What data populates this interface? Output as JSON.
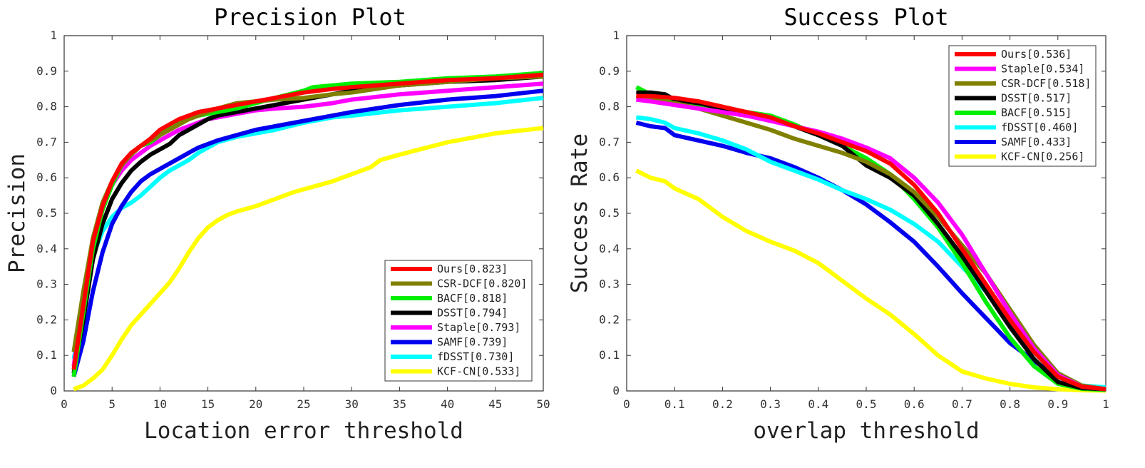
{
  "chart_data": [
    {
      "type": "line",
      "title": "Precision Plot",
      "xlabel": "Location error threshold",
      "ylabel": "Precision",
      "xlim": [
        0,
        50
      ],
      "ylim": [
        0,
        1
      ],
      "xticks": [
        "0",
        "5",
        "10",
        "15",
        "20",
        "25",
        "30",
        "35",
        "40",
        "45",
        "50"
      ],
      "yticks": [
        "0",
        "0.1",
        "0.2",
        "0.3",
        "0.4",
        "0.5",
        "0.6",
        "0.7",
        "0.8",
        "0.9",
        "1"
      ],
      "legend_position": "bottom-right",
      "grid": false,
      "series": [
        {
          "name": "Ours[0.823]",
          "color": "#ff0000",
          "x": [
            1,
            2,
            3,
            4,
            5,
            6,
            7,
            8,
            9,
            10,
            11,
            12,
            13,
            14,
            15,
            16,
            18,
            20,
            22,
            25,
            28,
            30,
            35,
            40,
            45,
            50
          ],
          "y": [
            0.06,
            0.24,
            0.42,
            0.52,
            0.59,
            0.64,
            0.67,
            0.69,
            0.71,
            0.735,
            0.75,
            0.765,
            0.775,
            0.785,
            0.79,
            0.795,
            0.805,
            0.815,
            0.825,
            0.84,
            0.85,
            0.855,
            0.865,
            0.875,
            0.88,
            0.89
          ]
        },
        {
          "name": "CSR-DCF[0.820]",
          "color": "#808000",
          "x": [
            1,
            2,
            3,
            4,
            5,
            6,
            7,
            8,
            9,
            10,
            11,
            12,
            13,
            14,
            15,
            16,
            18,
            20,
            22,
            25,
            28,
            30,
            35,
            40,
            45,
            50
          ],
          "y": [
            0.11,
            0.28,
            0.43,
            0.53,
            0.59,
            0.635,
            0.665,
            0.69,
            0.705,
            0.72,
            0.735,
            0.75,
            0.765,
            0.775,
            0.785,
            0.795,
            0.81,
            0.815,
            0.82,
            0.825,
            0.835,
            0.84,
            0.86,
            0.87,
            0.88,
            0.885
          ]
        },
        {
          "name": "BACF[0.818]",
          "color": "#00ee00",
          "x": [
            1,
            2,
            3,
            4,
            5,
            6,
            7,
            8,
            9,
            10,
            11,
            12,
            13,
            14,
            15,
            16,
            18,
            20,
            22,
            25,
            26,
            28,
            30,
            35,
            40,
            45,
            50
          ],
          "y": [
            0.04,
            0.22,
            0.4,
            0.51,
            0.58,
            0.635,
            0.67,
            0.69,
            0.7,
            0.72,
            0.74,
            0.755,
            0.765,
            0.775,
            0.78,
            0.785,
            0.795,
            0.81,
            0.825,
            0.845,
            0.855,
            0.86,
            0.865,
            0.87,
            0.88,
            0.885,
            0.895
          ]
        },
        {
          "name": "DSST[0.794]",
          "color": "#000000",
          "x": [
            1,
            2,
            3,
            4,
            5,
            6,
            7,
            8,
            9,
            10,
            11,
            12,
            13,
            14,
            15,
            16,
            18,
            20,
            22,
            25,
            28,
            30,
            35,
            40,
            45,
            50
          ],
          "y": [
            0.05,
            0.2,
            0.37,
            0.47,
            0.54,
            0.585,
            0.62,
            0.645,
            0.665,
            0.68,
            0.695,
            0.72,
            0.735,
            0.75,
            0.765,
            0.775,
            0.785,
            0.795,
            0.805,
            0.82,
            0.835,
            0.845,
            0.86,
            0.87,
            0.875,
            0.885
          ]
        },
        {
          "name": "Staple[0.793]",
          "color": "#ff00ff",
          "x": [
            1,
            2,
            3,
            4,
            5,
            6,
            7,
            8,
            9,
            10,
            11,
            12,
            13,
            14,
            15,
            16,
            18,
            20,
            22,
            25,
            28,
            30,
            35,
            40,
            45,
            50
          ],
          "y": [
            0.07,
            0.25,
            0.41,
            0.52,
            0.58,
            0.62,
            0.65,
            0.67,
            0.69,
            0.705,
            0.72,
            0.735,
            0.745,
            0.755,
            0.765,
            0.77,
            0.78,
            0.79,
            0.795,
            0.8,
            0.81,
            0.82,
            0.835,
            0.845,
            0.855,
            0.865
          ]
        },
        {
          "name": "SAMF[0.739]",
          "color": "#0000ee",
          "x": [
            1,
            2,
            3,
            4,
            5,
            6,
            7,
            8,
            9,
            10,
            11,
            12,
            13,
            14,
            15,
            16,
            18,
            20,
            22,
            25,
            28,
            30,
            35,
            40,
            45,
            50
          ],
          "y": [
            0.04,
            0.14,
            0.28,
            0.39,
            0.47,
            0.52,
            0.56,
            0.59,
            0.61,
            0.625,
            0.64,
            0.655,
            0.67,
            0.685,
            0.695,
            0.705,
            0.72,
            0.735,
            0.745,
            0.76,
            0.775,
            0.785,
            0.805,
            0.82,
            0.83,
            0.845
          ]
        },
        {
          "name": "fDSST[0.730]",
          "color": "#00ffff",
          "x": [
            1,
            2,
            3,
            4,
            5,
            6,
            7,
            8,
            9,
            10,
            11,
            12,
            13,
            14,
            15,
            16,
            18,
            20,
            22,
            25,
            28,
            30,
            35,
            40,
            45,
            50
          ],
          "y": [
            0.09,
            0.23,
            0.38,
            0.45,
            0.49,
            0.515,
            0.53,
            0.55,
            0.575,
            0.6,
            0.62,
            0.635,
            0.65,
            0.67,
            0.685,
            0.7,
            0.715,
            0.725,
            0.735,
            0.755,
            0.77,
            0.775,
            0.79,
            0.8,
            0.81,
            0.825
          ]
        },
        {
          "name": "KCF-CN[0.533]",
          "color": "#ffff00",
          "x": [
            1,
            2,
            3,
            4,
            5,
            6,
            7,
            8,
            9,
            10,
            11,
            12,
            13,
            14,
            15,
            16,
            17,
            18,
            20,
            22,
            24,
            26,
            28,
            30,
            32,
            33,
            35,
            40,
            45,
            50
          ],
          "y": [
            0.005,
            0.015,
            0.035,
            0.06,
            0.1,
            0.145,
            0.185,
            0.215,
            0.245,
            0.275,
            0.305,
            0.345,
            0.39,
            0.43,
            0.46,
            0.48,
            0.495,
            0.505,
            0.52,
            0.54,
            0.56,
            0.575,
            0.59,
            0.61,
            0.63,
            0.65,
            0.665,
            0.7,
            0.725,
            0.74
          ]
        }
      ]
    },
    {
      "type": "line",
      "title": "Success Plot",
      "xlabel": "overlap threshold",
      "ylabel": "Success Rate",
      "xlim": [
        0,
        1
      ],
      "ylim": [
        0,
        1
      ],
      "xticks": [
        "0",
        "0.1",
        "0.2",
        "0.3",
        "0.4",
        "0.5",
        "0.6",
        "0.7",
        "0.8",
        "0.9",
        "1"
      ],
      "yticks": [
        "0",
        "0.1",
        "0.2",
        "0.3",
        "0.4",
        "0.5",
        "0.6",
        "0.7",
        "0.8",
        "0.9",
        "1"
      ],
      "legend_position": "top-right",
      "grid": false,
      "series": [
        {
          "name": "Ours[0.536]",
          "color": "#ff0000",
          "x": [
            0.02,
            0.05,
            0.1,
            0.15,
            0.2,
            0.25,
            0.3,
            0.35,
            0.4,
            0.45,
            0.5,
            0.55,
            0.6,
            0.65,
            0.7,
            0.75,
            0.8,
            0.85,
            0.9,
            0.95,
            1.0
          ],
          "y": [
            0.83,
            0.83,
            0.825,
            0.815,
            0.8,
            0.785,
            0.77,
            0.745,
            0.725,
            0.7,
            0.675,
            0.64,
            0.58,
            0.5,
            0.4,
            0.3,
            0.2,
            0.11,
            0.04,
            0.012,
            0.005
          ]
        },
        {
          "name": "Staple[0.534]",
          "color": "#ff00ff",
          "x": [
            0.02,
            0.05,
            0.1,
            0.15,
            0.2,
            0.25,
            0.3,
            0.35,
            0.4,
            0.45,
            0.5,
            0.55,
            0.6,
            0.65,
            0.7,
            0.75,
            0.8,
            0.85,
            0.9,
            0.95,
            1.0
          ],
          "y": [
            0.82,
            0.815,
            0.805,
            0.795,
            0.785,
            0.775,
            0.76,
            0.745,
            0.73,
            0.71,
            0.685,
            0.655,
            0.6,
            0.53,
            0.44,
            0.33,
            0.22,
            0.12,
            0.045,
            0.012,
            0.005
          ]
        },
        {
          "name": "CSR-DCF[0.518]",
          "color": "#808000",
          "x": [
            0.02,
            0.05,
            0.1,
            0.15,
            0.2,
            0.25,
            0.3,
            0.35,
            0.4,
            0.45,
            0.5,
            0.55,
            0.6,
            0.65,
            0.7,
            0.75,
            0.8,
            0.85,
            0.9,
            0.95,
            1.0
          ],
          "y": [
            0.83,
            0.82,
            0.81,
            0.795,
            0.775,
            0.755,
            0.735,
            0.71,
            0.69,
            0.67,
            0.645,
            0.61,
            0.56,
            0.49,
            0.41,
            0.33,
            0.23,
            0.13,
            0.05,
            0.015,
            0.005
          ]
        },
        {
          "name": "DSST[0.517]",
          "color": "#000000",
          "x": [
            0.02,
            0.05,
            0.08,
            0.1,
            0.15,
            0.2,
            0.25,
            0.3,
            0.35,
            0.4,
            0.45,
            0.5,
            0.55,
            0.6,
            0.65,
            0.7,
            0.75,
            0.8,
            0.85,
            0.9,
            0.95,
            1.0
          ],
          "y": [
            0.84,
            0.84,
            0.835,
            0.82,
            0.81,
            0.795,
            0.78,
            0.765,
            0.745,
            0.72,
            0.69,
            0.635,
            0.6,
            0.55,
            0.47,
            0.38,
            0.28,
            0.18,
            0.09,
            0.025,
            0.008,
            0.005
          ]
        },
        {
          "name": "BACF[0.515]",
          "color": "#00ee00",
          "x": [
            0.02,
            0.05,
            0.1,
            0.15,
            0.2,
            0.25,
            0.3,
            0.35,
            0.4,
            0.45,
            0.5,
            0.55,
            0.6,
            0.65,
            0.7,
            0.75,
            0.8,
            0.85,
            0.9,
            0.95,
            1.0
          ],
          "y": [
            0.855,
            0.835,
            0.815,
            0.805,
            0.795,
            0.785,
            0.775,
            0.75,
            0.72,
            0.69,
            0.655,
            0.61,
            0.54,
            0.46,
            0.36,
            0.25,
            0.15,
            0.07,
            0.02,
            0.006,
            0.003
          ]
        },
        {
          "name": "fDSST[0.460]",
          "color": "#00ffff",
          "x": [
            0.02,
            0.05,
            0.08,
            0.1,
            0.15,
            0.2,
            0.25,
            0.3,
            0.35,
            0.4,
            0.45,
            0.5,
            0.55,
            0.6,
            0.65,
            0.7,
            0.75,
            0.8,
            0.85,
            0.9,
            0.95,
            1.0
          ],
          "y": [
            0.77,
            0.765,
            0.755,
            0.74,
            0.725,
            0.705,
            0.68,
            0.645,
            0.62,
            0.595,
            0.565,
            0.54,
            0.51,
            0.47,
            0.42,
            0.35,
            0.28,
            0.2,
            0.11,
            0.04,
            0.015,
            0.01
          ]
        },
        {
          "name": "SAMF[0.433]",
          "color": "#0000ee",
          "x": [
            0.02,
            0.05,
            0.08,
            0.1,
            0.15,
            0.2,
            0.25,
            0.3,
            0.35,
            0.4,
            0.45,
            0.5,
            0.55,
            0.6,
            0.65,
            0.7,
            0.75,
            0.8,
            0.85,
            0.9,
            0.95,
            1.0
          ],
          "y": [
            0.755,
            0.745,
            0.74,
            0.72,
            0.705,
            0.69,
            0.67,
            0.655,
            0.63,
            0.6,
            0.565,
            0.525,
            0.475,
            0.42,
            0.35,
            0.275,
            0.205,
            0.135,
            0.085,
            0.04,
            0.015,
            0.005
          ]
        },
        {
          "name": "KCF-CN[0.256]",
          "color": "#ffff00",
          "x": [
            0.02,
            0.05,
            0.08,
            0.1,
            0.15,
            0.18,
            0.2,
            0.25,
            0.3,
            0.35,
            0.4,
            0.45,
            0.5,
            0.55,
            0.6,
            0.65,
            0.7,
            0.75,
            0.8,
            0.85,
            0.9,
            0.95,
            1.0
          ],
          "y": [
            0.62,
            0.6,
            0.59,
            0.57,
            0.54,
            0.51,
            0.49,
            0.45,
            0.42,
            0.395,
            0.36,
            0.31,
            0.26,
            0.215,
            0.16,
            0.1,
            0.055,
            0.035,
            0.02,
            0.01,
            0.005,
            0.002,
            0.001
          ]
        }
      ]
    }
  ]
}
